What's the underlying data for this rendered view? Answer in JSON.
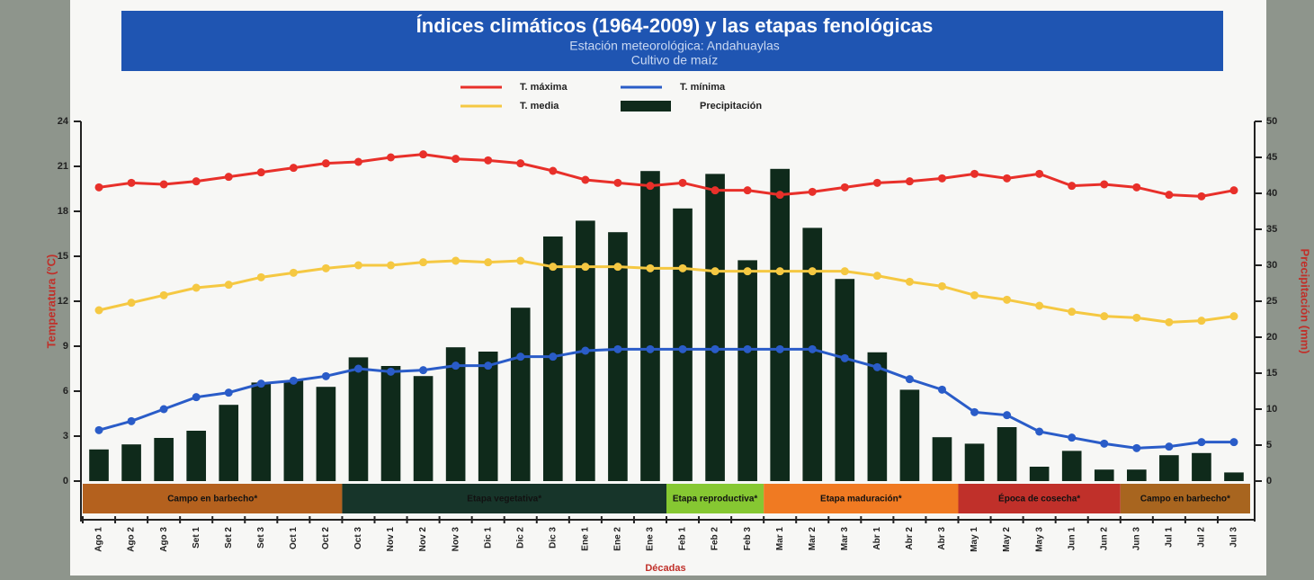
{
  "chart_data": {
    "type": "bar-line",
    "title": "Índices climáticos (1964-2009) y las etapas fenológicas",
    "subtitle": [
      "Estación meteorológica: Andahuaylas",
      "Cultivo de maíz"
    ],
    "x_label": "Décadas",
    "y_label": "Temperatura (°C)",
    "y2_label": "Precipitación (mm)",
    "categories": [
      "Ago 1",
      "Ago 2",
      "Ago 3",
      "Set 1",
      "Set 2",
      "Set 3",
      "Oct 1",
      "Oct 2",
      "Oct 3",
      "Nov 1",
      "Nov 2",
      "Nov 3",
      "Dic 1",
      "Dic 2",
      "Dic 3",
      "Ene 1",
      "Ene 2",
      "Ene 3",
      "Feb 1",
      "Feb 2",
      "Feb 3",
      "Mar 1",
      "Mar 2",
      "Mar 3",
      "Abr 1",
      "Abr 2",
      "Abr 3",
      "May 1",
      "May 2",
      "May 3",
      "Jun 1",
      "Jun 2",
      "Jun 3",
      "Jul 1",
      "Jul 2",
      "Jul 3"
    ],
    "ylim": [
      0,
      24
    ],
    "yticks": [
      0,
      3,
      6,
      9,
      12,
      15,
      18,
      21,
      24
    ],
    "y2lim": [
      0,
      50
    ],
    "y2ticks": [
      0,
      5,
      10,
      15,
      20,
      25,
      30,
      35,
      40,
      45,
      50
    ],
    "series": [
      {
        "name": "Precipitación",
        "type": "bar",
        "axis": "y2",
        "color": "#0f2a1b",
        "values": [
          4.4,
          5.1,
          6,
          7,
          10.6,
          13.7,
          14,
          13.1,
          17.2,
          16,
          14.6,
          18.6,
          18,
          24.1,
          34,
          36.2,
          34.6,
          43.1,
          37.9,
          42.7,
          30.7,
          43.4,
          35.2,
          28.1,
          17.9,
          12.7,
          6.1,
          5.2,
          7.5,
          2,
          4.2,
          1.6,
          1.6,
          3.6,
          3.9,
          1.2
        ]
      },
      {
        "name": "T. máxima",
        "type": "line",
        "color": "#e8302a",
        "values": [
          19.6,
          19.9,
          19.8,
          20.0,
          20.3,
          20.6,
          20.9,
          21.2,
          21.3,
          21.6,
          21.8,
          21.5,
          21.4,
          21.2,
          20.7,
          20.1,
          19.9,
          19.7,
          19.9,
          19.4,
          19.4,
          19.1,
          19.3,
          19.6,
          19.9,
          20.0,
          20.2,
          20.5,
          20.2,
          20.5,
          19.7,
          19.8,
          19.6,
          19.1,
          19.0,
          19.4
        ]
      },
      {
        "name": "T. mínima",
        "type": "line",
        "color": "#2a5cc8",
        "values": [
          3.4,
          4.0,
          4.8,
          5.6,
          5.9,
          6.5,
          6.7,
          7.0,
          7.5,
          7.3,
          7.4,
          7.7,
          7.7,
          8.3,
          8.3,
          8.7,
          8.8,
          8.8,
          8.8,
          8.8,
          8.8,
          8.8,
          8.8,
          8.2,
          7.6,
          6.8,
          6.1,
          4.6,
          4.4,
          3.3,
          2.9,
          2.5,
          2.2,
          2.3,
          2.6,
          2.6
        ]
      },
      {
        "name": "T. media",
        "type": "line",
        "color": "#f5c842",
        "values": [
          11.4,
          11.9,
          12.4,
          12.9,
          13.1,
          13.6,
          13.9,
          14.2,
          14.4,
          14.4,
          14.6,
          14.7,
          14.6,
          14.7,
          14.3,
          14.3,
          14.3,
          14.2,
          14.2,
          14.0,
          14.0,
          14.0,
          14.0,
          14.0,
          13.7,
          13.3,
          13.0,
          12.4,
          12.1,
          11.7,
          11.3,
          11.0,
          10.9,
          10.6,
          10.7,
          11.0
        ]
      }
    ],
    "phases": [
      {
        "label": "Campo en barbecho*",
        "first": "Ago 1",
        "last": "Oct 2",
        "color": "#b4611e"
      },
      {
        "label": "Etapa vegetativa*",
        "first": "Oct 3",
        "last": "Ene 3",
        "color": "#17352a"
      },
      {
        "label": "Etapa reproductiva*",
        "first": "Feb 1",
        "last": "Feb 3",
        "color": "#86c832"
      },
      {
        "label": "Etapa maduración*",
        "first": "Mar 1",
        "last": "Abr 3",
        "color": "#f07a22"
      },
      {
        "label": "Época de cosecha*",
        "first": "May 1",
        "last": "Jun 2",
        "color": "#c0302a"
      },
      {
        "label": "Campo en barbecho*",
        "first": "Jun 3",
        "last": "Jul 3",
        "color": "#a8651f"
      }
    ]
  }
}
